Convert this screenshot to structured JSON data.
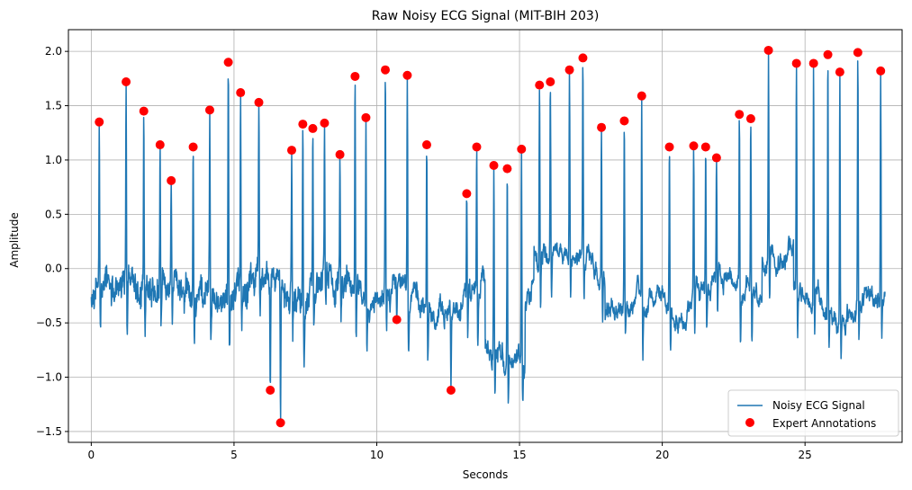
{
  "chart_data": {
    "type": "line",
    "title": "Raw Noisy ECG Signal (MIT-BIH 203)",
    "xlabel": "Seconds",
    "ylabel": "Amplitude",
    "xlim": [
      -0.8,
      28.4
    ],
    "ylim": [
      -1.6,
      2.2
    ],
    "xticks": [
      0,
      5,
      10,
      15,
      20,
      25
    ],
    "yticks": [
      -1.5,
      -1.0,
      -0.5,
      0.0,
      0.5,
      1.0,
      1.5,
      2.0
    ],
    "xtick_labels": [
      "0",
      "5",
      "10",
      "15",
      "20",
      "25"
    ],
    "ytick_labels": [
      "−1.5",
      "−1.0",
      "−0.5",
      "0.0",
      "0.5",
      "1.0",
      "1.5",
      "2.0"
    ],
    "grid": true,
    "legend_position": "bottom-right",
    "signal_duration_s": 27.8,
    "series": [
      {
        "name": "Noisy ECG Signal",
        "kind": "line",
        "color": "#1f77b4"
      },
      {
        "name": "Expert Annotations",
        "kind": "scatter",
        "color": "#ff0000",
        "x": [
          0.28,
          1.22,
          1.84,
          2.41,
          2.8,
          3.57,
          4.15,
          4.8,
          5.23,
          5.87,
          6.27,
          6.63,
          7.02,
          7.41,
          7.76,
          8.17,
          8.71,
          9.24,
          9.62,
          10.3,
          10.7,
          11.07,
          11.75,
          12.6,
          13.15,
          13.5,
          14.1,
          14.57,
          15.07,
          15.7,
          16.08,
          16.75,
          17.22,
          17.87,
          18.67,
          19.28,
          20.25,
          21.1,
          21.52,
          21.9,
          22.7,
          23.1,
          23.72,
          24.7,
          25.3,
          25.8,
          26.22,
          26.85,
          27.65
        ],
        "y": [
          1.35,
          1.72,
          1.45,
          1.14,
          0.81,
          1.12,
          1.46,
          1.9,
          1.62,
          1.53,
          -1.12,
          -1.42,
          1.09,
          1.33,
          1.29,
          1.34,
          1.05,
          1.77,
          1.39,
          1.83,
          -0.47,
          1.78,
          1.14,
          -1.12,
          0.69,
          1.12,
          0.95,
          0.92,
          1.1,
          1.69,
          1.72,
          1.83,
          1.94,
          1.3,
          1.36,
          1.59,
          1.12,
          1.13,
          1.12,
          1.02,
          1.42,
          1.38,
          2.01,
          1.89,
          1.89,
          1.97,
          1.81,
          1.99,
          1.82
        ]
      }
    ]
  }
}
